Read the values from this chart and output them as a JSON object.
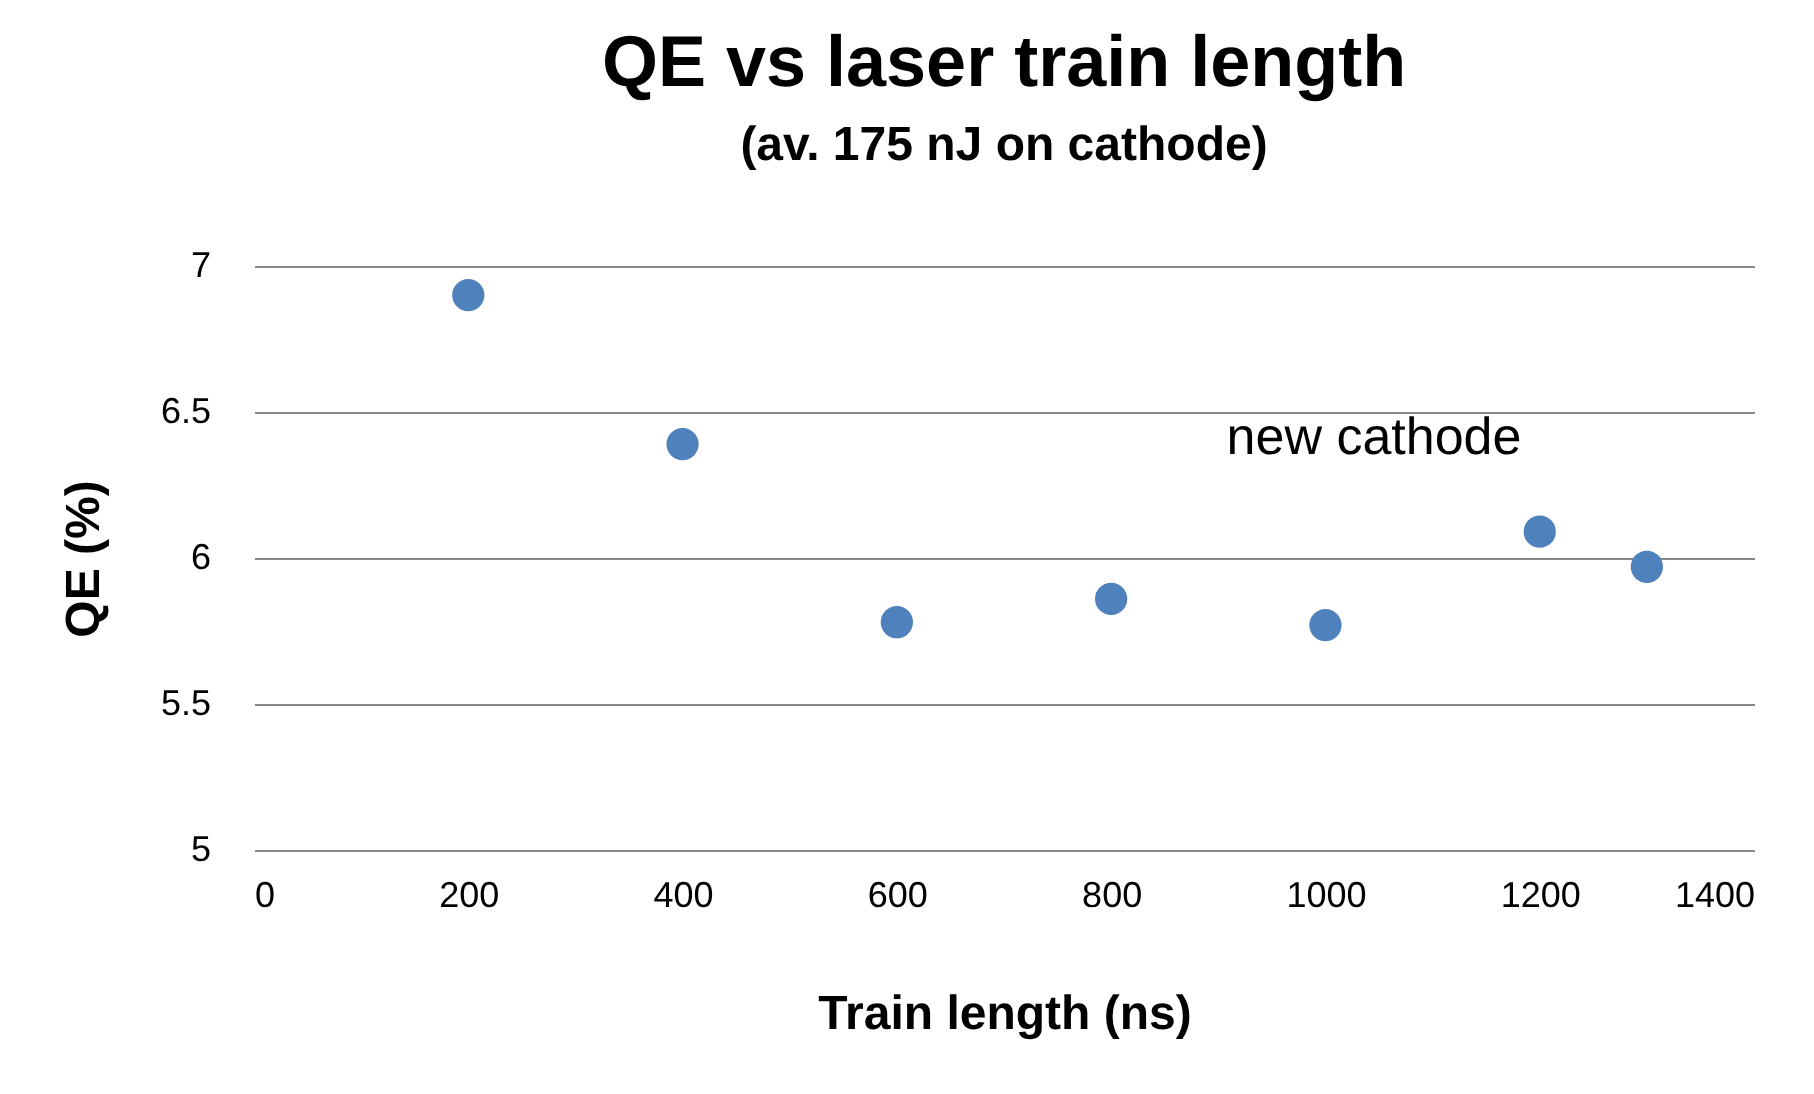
{
  "chart_data": {
    "type": "scatter",
    "title": "QE vs laser train length",
    "subtitle": "(av. 175 nJ on cathode)",
    "xlabel": "Train length (ns)",
    "ylabel": "QE (%)",
    "x": [
      200,
      400,
      600,
      800,
      1000,
      1200,
      1300
    ],
    "series": [
      {
        "color": "#4f81bd",
        "values": [
          6.9,
          6.39,
          5.78,
          5.86,
          5.77,
          6.09,
          5.97
        ]
      }
    ],
    "xlim": [
      0,
      1400
    ],
    "xticks": [
      0,
      200,
      400,
      600,
      800,
      1000,
      1200,
      1400
    ],
    "ylim": [
      5,
      7
    ],
    "yticks": [
      5,
      5.5,
      6,
      6.5,
      7
    ],
    "grid": "y",
    "marker": "circle",
    "legend": false,
    "annotations": [
      "new cathode"
    ]
  }
}
